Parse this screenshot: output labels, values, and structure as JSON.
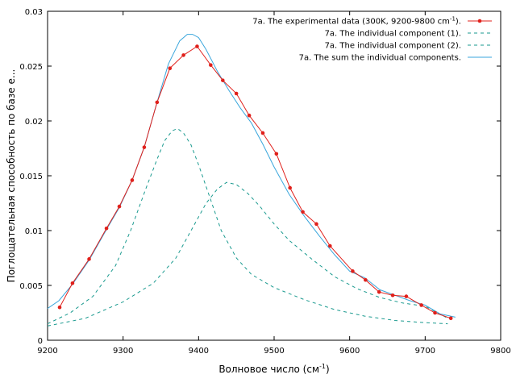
{
  "chart_data": {
    "type": "line",
    "title": "",
    "xlabel_main": "Волновое число (см",
    "xlabel_sup": "-1",
    "xlabel_end": ")",
    "ylabel": "Поглощательная способность по базе е...",
    "xlim": [
      9200,
      9800
    ],
    "ylim": [
      0,
      0.03
    ],
    "grid": false,
    "legend_position": "top-right",
    "x_ticks": [
      "9200",
      "9300",
      "9400",
      "9500",
      "9600",
      "9700",
      "9800"
    ],
    "y_ticks": [
      "0",
      "0.005",
      "0.01",
      "0.015",
      "0.02",
      "0.025",
      "0.03"
    ],
    "series": [
      {
        "name_main": "7a. The experimental data (300K, 9200-9800 cm",
        "name_sup": "-1",
        "name_end": ").",
        "color": "#e0201b",
        "style": "solid-markers",
        "x": [
          9216,
          9233,
          9255,
          9278,
          9295,
          9312,
          9328,
          9345,
          9362,
          9380,
          9398,
          9416,
          9432,
          9450,
          9467,
          9485,
          9503,
          9521,
          9538,
          9556,
          9574,
          9604,
          9621,
          9639,
          9657,
          9675,
          9695,
          9713,
          9734
        ],
        "y": [
          0.003,
          0.0052,
          0.0074,
          0.0102,
          0.0122,
          0.0146,
          0.0176,
          0.0217,
          0.0248,
          0.026,
          0.0268,
          0.0251,
          0.0237,
          0.0225,
          0.0205,
          0.0189,
          0.017,
          0.0139,
          0.0117,
          0.0106,
          0.0086,
          0.0063,
          0.0055,
          0.0044,
          0.0041,
          0.004,
          0.0032,
          0.0025,
          0.002
        ]
      },
      {
        "name_main": "7a. The individual  component (1).",
        "color": "#1a9a8f",
        "style": "dashed",
        "x": [
          9200,
          9230,
          9260,
          9290,
          9310,
          9330,
          9345,
          9355,
          9365,
          9372,
          9380,
          9390,
          9400,
          9415,
          9430,
          9450,
          9470,
          9500,
          9540,
          9580,
          9620,
          9660,
          9700,
          9730
        ],
        "y": [
          0.0015,
          0.0025,
          0.004,
          0.0068,
          0.01,
          0.0138,
          0.0165,
          0.0182,
          0.0191,
          0.0193,
          0.0189,
          0.0178,
          0.016,
          0.013,
          0.01,
          0.0075,
          0.006,
          0.0048,
          0.0037,
          0.0028,
          0.0022,
          0.0018,
          0.0016,
          0.0015
        ]
      },
      {
        "name_main": "7a. The individual  component (2).",
        "color": "#1a9a8f",
        "style": "dashed",
        "x": [
          9200,
          9250,
          9300,
          9340,
          9370,
          9390,
          9410,
          9425,
          9437,
          9450,
          9465,
          9480,
          9500,
          9520,
          9550,
          9580,
          9610,
          9640,
          9670,
          9700,
          9730
        ],
        "y": [
          0.0013,
          0.002,
          0.0035,
          0.0052,
          0.0075,
          0.01,
          0.0125,
          0.0138,
          0.0144,
          0.0142,
          0.0134,
          0.0123,
          0.0106,
          0.0091,
          0.0074,
          0.0058,
          0.0047,
          0.0039,
          0.0034,
          0.0031,
          0.002
        ]
      },
      {
        "name_main": "7a. The sum the individual components.",
        "color": "#3aa6dc",
        "style": "solid",
        "x": [
          9200,
          9215,
          9233,
          9255,
          9278,
          9295,
          9312,
          9328,
          9345,
          9360,
          9375,
          9385,
          9392,
          9400,
          9410,
          9425,
          9440,
          9455,
          9470,
          9485,
          9500,
          9520,
          9540,
          9560,
          9580,
          9600,
          9620,
          9640,
          9660,
          9680,
          9700,
          9720,
          9740
        ],
        "y": [
          0.0029,
          0.0036,
          0.0051,
          0.0073,
          0.0101,
          0.0121,
          0.0146,
          0.0176,
          0.0217,
          0.0252,
          0.0273,
          0.0279,
          0.0279,
          0.0276,
          0.0265,
          0.0245,
          0.0228,
          0.0212,
          0.0198,
          0.0179,
          0.0158,
          0.0133,
          0.0113,
          0.0095,
          0.0078,
          0.0063,
          0.0057,
          0.0046,
          0.0041,
          0.0036,
          0.0032,
          0.0024,
          0.0021
        ]
      }
    ]
  }
}
